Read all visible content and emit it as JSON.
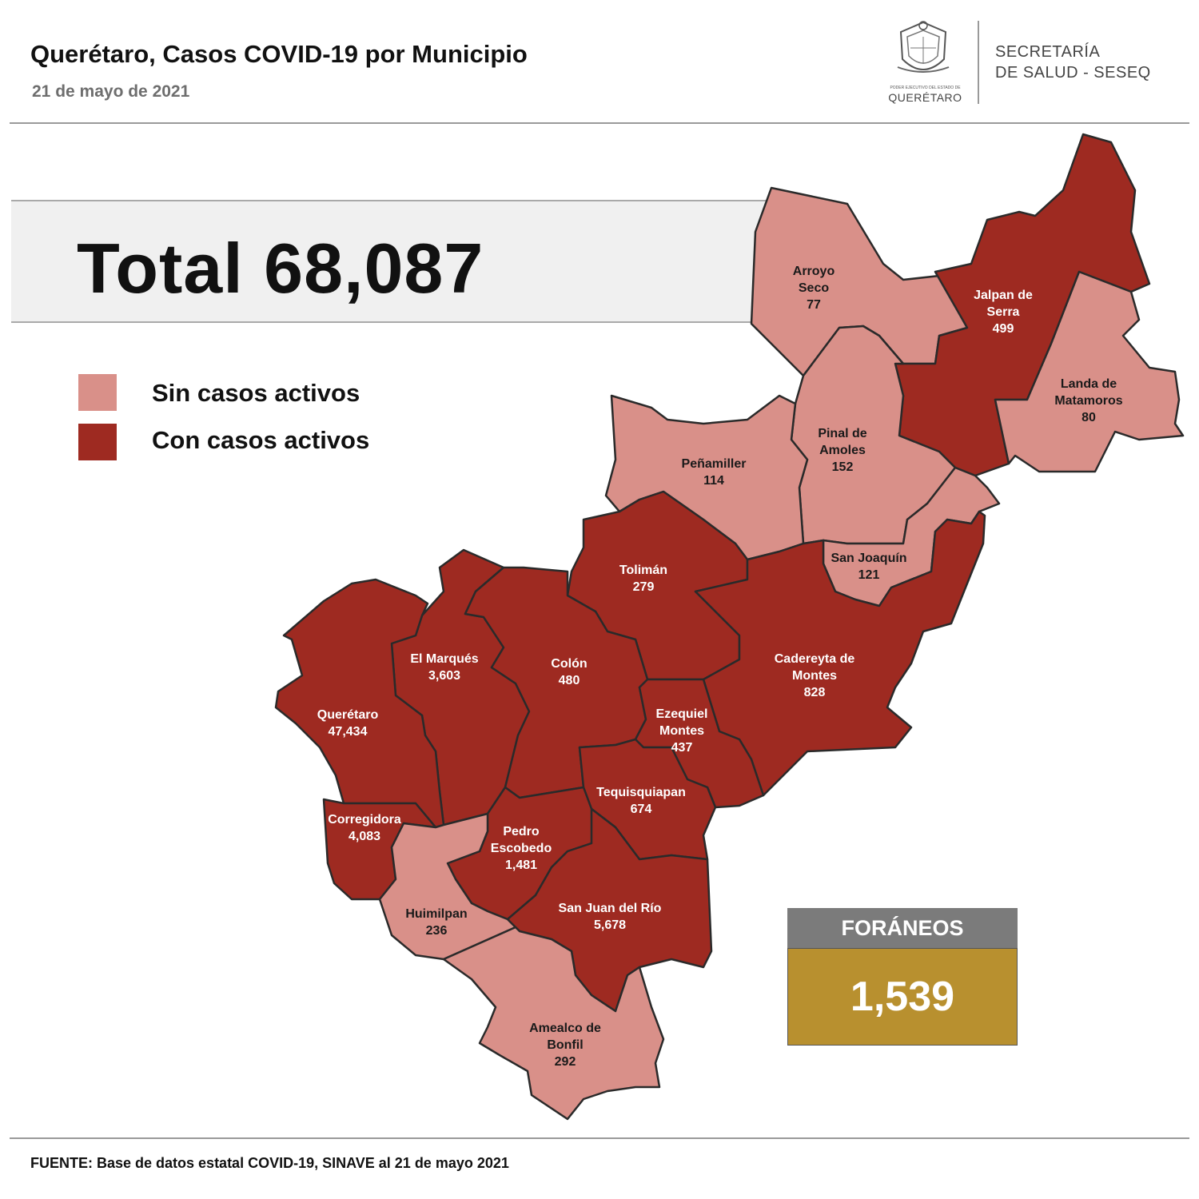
{
  "header": {
    "title": "Querétaro, Casos COVID-19 por Municipio",
    "date": "21 de mayo de 2021"
  },
  "logo": {
    "crest_small_text": "PODER EJECUTIVO DEL ESTADO DE",
    "crest_name": "QUERÉTARO",
    "secretaria_line1": "SECRETARÍA",
    "secretaria_line2": "DE SALUD - SESEQ"
  },
  "total": {
    "label": "Total 68,087"
  },
  "legend": {
    "items": [
      {
        "label": "Sin casos activos",
        "color": "#d99089"
      },
      {
        "label": "Con casos activos",
        "color": "#9e2a21"
      }
    ]
  },
  "colors": {
    "inactive": "#d99089",
    "active": "#9e2a21"
  },
  "municipalities": [
    {
      "id": "arroyo-seco",
      "lines": [
        "Arroyo",
        "Seco",
        "77"
      ],
      "cases": 77,
      "status": "inactive"
    },
    {
      "id": "jalpan",
      "lines": [
        "Jalpan de",
        "Serra",
        "499"
      ],
      "cases": 499,
      "status": "active"
    },
    {
      "id": "landa",
      "lines": [
        "Landa de",
        "Matamoros",
        "80"
      ],
      "cases": 80,
      "status": "inactive"
    },
    {
      "id": "pinal",
      "lines": [
        "Pinal de",
        "Amoles",
        "152"
      ],
      "cases": 152,
      "status": "inactive"
    },
    {
      "id": "penamiller",
      "lines": [
        "Peñamiller",
        "114"
      ],
      "cases": 114,
      "status": "inactive"
    },
    {
      "id": "san-joaquin",
      "lines": [
        "San Joaquín",
        "121"
      ],
      "cases": 121,
      "status": "inactive"
    },
    {
      "id": "toliman",
      "lines": [
        "Tolimán",
        "279"
      ],
      "cases": 279,
      "status": "active"
    },
    {
      "id": "cadereyta",
      "lines": [
        "Cadereyta de",
        "Montes",
        "828"
      ],
      "cases": 828,
      "status": "active"
    },
    {
      "id": "el-marques",
      "lines": [
        "El  Marqués",
        "3,603"
      ],
      "cases": 3603,
      "status": "active"
    },
    {
      "id": "colon",
      "lines": [
        "Colón",
        "480"
      ],
      "cases": 480,
      "status": "active"
    },
    {
      "id": "queretaro",
      "lines": [
        "Querétaro",
        "47,434"
      ],
      "cases": 47434,
      "status": "active"
    },
    {
      "id": "ezequiel",
      "lines": [
        "Ezequiel",
        "Montes",
        "437"
      ],
      "cases": 437,
      "status": "active"
    },
    {
      "id": "tequisquiapan",
      "lines": [
        "Tequisquiapan",
        "674"
      ],
      "cases": 674,
      "status": "active"
    },
    {
      "id": "corregidora",
      "lines": [
        "Corregidora",
        "4,083"
      ],
      "cases": 4083,
      "status": "active"
    },
    {
      "id": "pedro-escobedo",
      "lines": [
        "Pedro",
        "Escobedo",
        "1,481"
      ],
      "cases": 1481,
      "status": "active"
    },
    {
      "id": "huimilpan",
      "lines": [
        "Huimilpan",
        "236"
      ],
      "cases": 236,
      "status": "inactive"
    },
    {
      "id": "san-juan",
      "lines": [
        "San Juan del Río",
        "5,678"
      ],
      "cases": 5678,
      "status": "active"
    },
    {
      "id": "amealco",
      "lines": [
        "Amealco de",
        "Bonfil",
        "292"
      ],
      "cases": 292,
      "status": "inactive"
    }
  ],
  "foraneos": {
    "label": "FORÁNEOS",
    "value": "1,539"
  },
  "source": "FUENTE: Base de datos estatal COVID-19, SINAVE al 21 de mayo 2021"
}
